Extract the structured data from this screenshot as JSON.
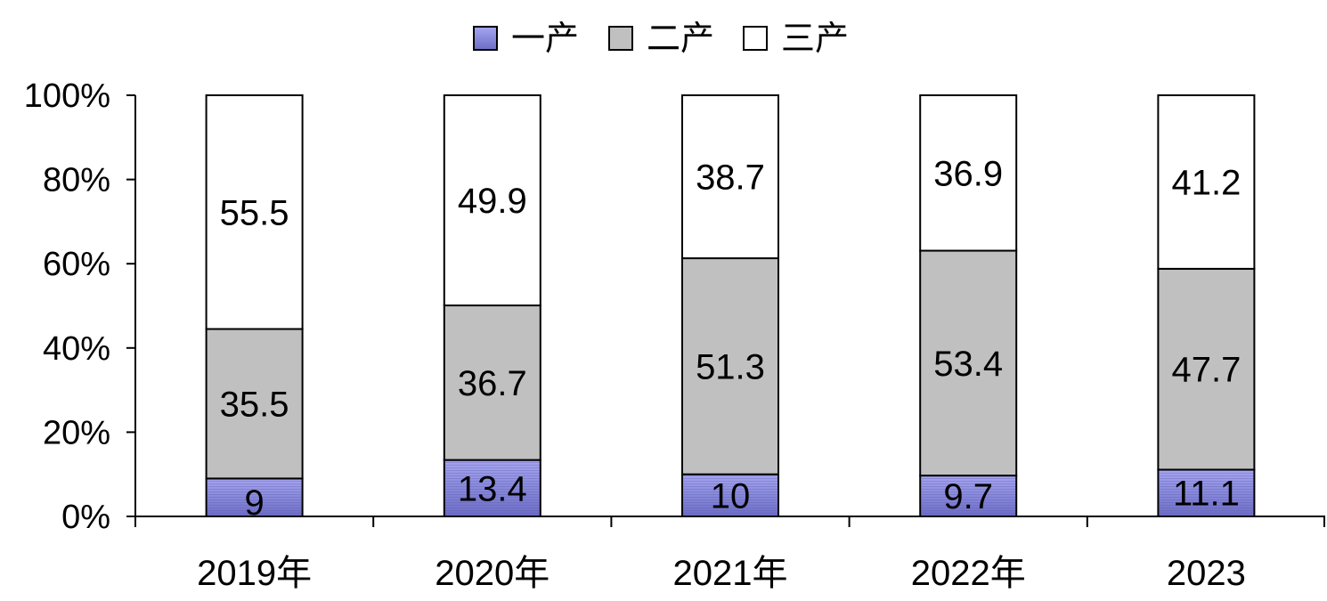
{
  "chart_data": {
    "type": "bar",
    "stacked": true,
    "normalized_percent": true,
    "categories": [
      "2019年",
      "2020年",
      "2021年",
      "2022年",
      "2023"
    ],
    "series": [
      {
        "name": "一产",
        "values": [
          9,
          13.4,
          10,
          9.7,
          11.1
        ],
        "color": "#8f8fe6"
      },
      {
        "name": "二产",
        "values": [
          35.5,
          36.7,
          51.3,
          53.4,
          47.7
        ],
        "color": "#c0c0c0"
      },
      {
        "name": "三产",
        "values": [
          55.5,
          49.9,
          38.7,
          36.9,
          41.2
        ],
        "color": "#ffffff"
      }
    ],
    "y_ticks": [
      "0%",
      "20%",
      "40%",
      "60%",
      "80%",
      "100%"
    ],
    "ylim": [
      0,
      100
    ],
    "legend_position": "top",
    "grid": false,
    "title": "",
    "xlabel": "",
    "ylabel": ""
  }
}
